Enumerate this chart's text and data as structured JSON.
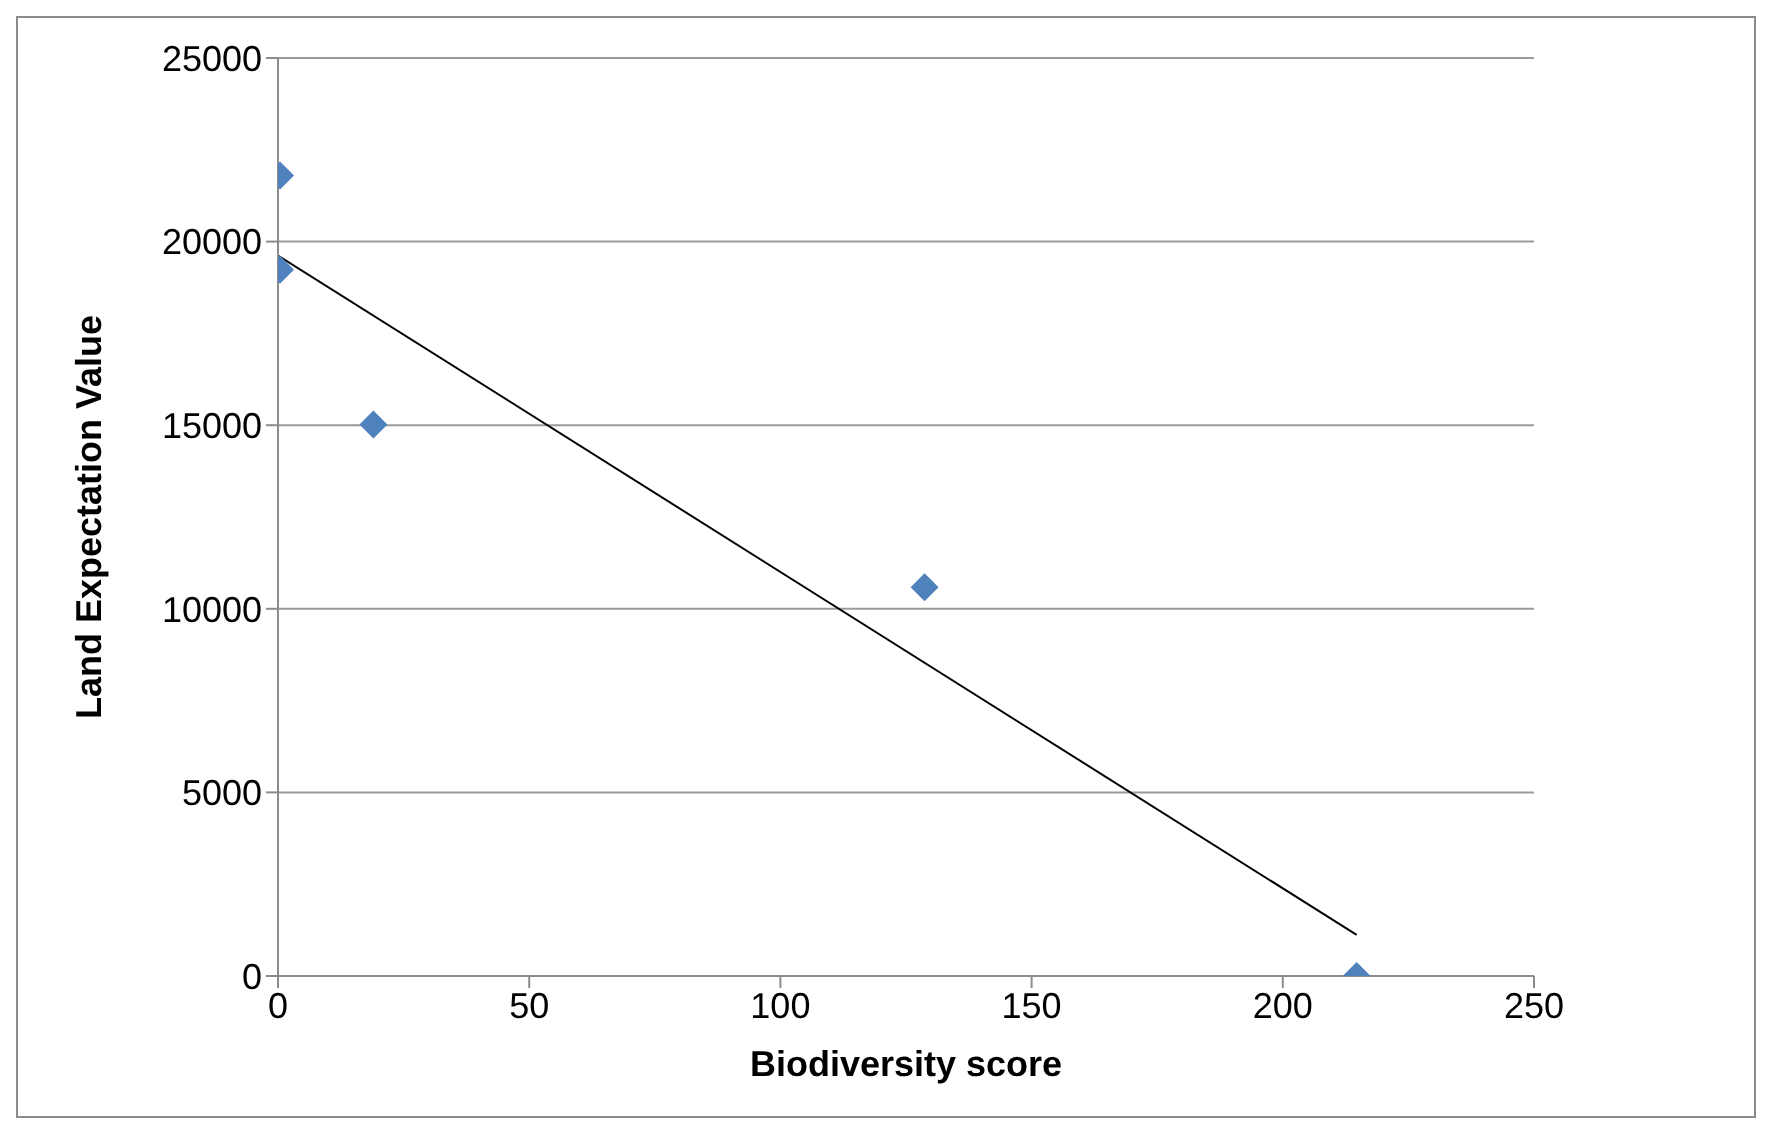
{
  "chart_data": {
    "type": "scatter",
    "xlabel": "Biodiversity score",
    "ylabel": "Land Expectation Value",
    "xlim": [
      0,
      250
    ],
    "xticks": [
      0,
      50,
      100,
      150,
      200,
      250
    ],
    "ylim": [
      0,
      25000
    ],
    "yticks": [
      0,
      5000,
      10000,
      15000,
      20000,
      25000
    ],
    "grid": "y",
    "legend": false,
    "marker": "diamond",
    "series": [
      {
        "color": "#4f81bd",
        "x": [
          0.4,
          0.4,
          19,
          128.7,
          214.7
        ],
        "values": [
          21800,
          19230,
          15020,
          10590,
          0
        ]
      },
      {
        "type": "line",
        "color": "#000000",
        "marker": "none",
        "line_style": "solid",
        "x": [
          0,
          214.7
        ],
        "values": [
          19620,
          1120
        ]
      }
    ]
  }
}
